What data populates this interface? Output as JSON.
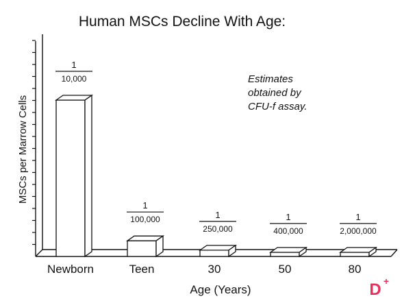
{
  "chart_data": {
    "type": "bar",
    "title": "Human MSCs Decline With Age:",
    "xlabel": "Age (Years)",
    "ylabel": "MSCs per Marrow Cells",
    "categories": [
      "Newborn",
      "Teen",
      "30",
      "50",
      "80"
    ],
    "values": [
      0.0001,
      1e-05,
      4e-06,
      2.5e-06,
      5e-07
    ],
    "labels": [
      {
        "numerator": "1",
        "denominator": "10,000"
      },
      {
        "numerator": "1",
        "denominator": "100,000"
      },
      {
        "numerator": "1",
        "denominator": "250,000"
      },
      {
        "numerator": "1",
        "denominator": "400,000"
      },
      {
        "numerator": "1",
        "denominator": "2,000,000"
      }
    ],
    "annotation": [
      "Estimates",
      "obtained by",
      "CFU-f assay."
    ],
    "grid": false,
    "style": "3d"
  },
  "logo": {
    "glyph": "D",
    "badge": "+",
    "color": "#e8305a"
  }
}
